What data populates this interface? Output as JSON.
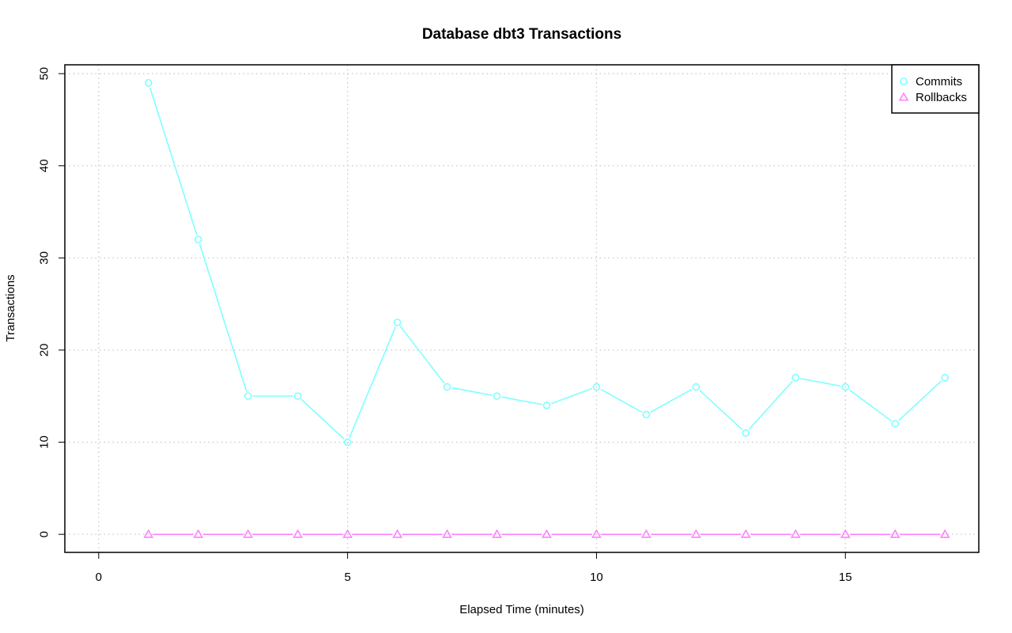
{
  "chart_data": {
    "type": "line",
    "title": "Database dbt3 Transactions",
    "xlabel": "Elapsed Time (minutes)",
    "ylabel": "Transactions",
    "xlim": [
      -0.68,
      17.68
    ],
    "ylim": [
      -1.96,
      50.96
    ],
    "x_ticks": [
      0,
      5,
      10,
      15
    ],
    "y_ticks": [
      0,
      10,
      20,
      30,
      40,
      50
    ],
    "grid": true,
    "legend_position": "top-right",
    "x": [
      1,
      2,
      3,
      4,
      5,
      6,
      7,
      8,
      9,
      10,
      11,
      12,
      13,
      14,
      15,
      16,
      17
    ],
    "series": [
      {
        "name": "Commits",
        "color": "#7fffff",
        "marker": "circle",
        "values": [
          49,
          32,
          15,
          15,
          10,
          23,
          16,
          15,
          14,
          16,
          13,
          16,
          11,
          17,
          16,
          12,
          17
        ]
      },
      {
        "name": "Rollbacks",
        "color": "#ff80ff",
        "marker": "triangle",
        "values": [
          0,
          0,
          0,
          0,
          0,
          0,
          0,
          0,
          0,
          0,
          0,
          0,
          0,
          0,
          0,
          0,
          0
        ]
      }
    ]
  }
}
